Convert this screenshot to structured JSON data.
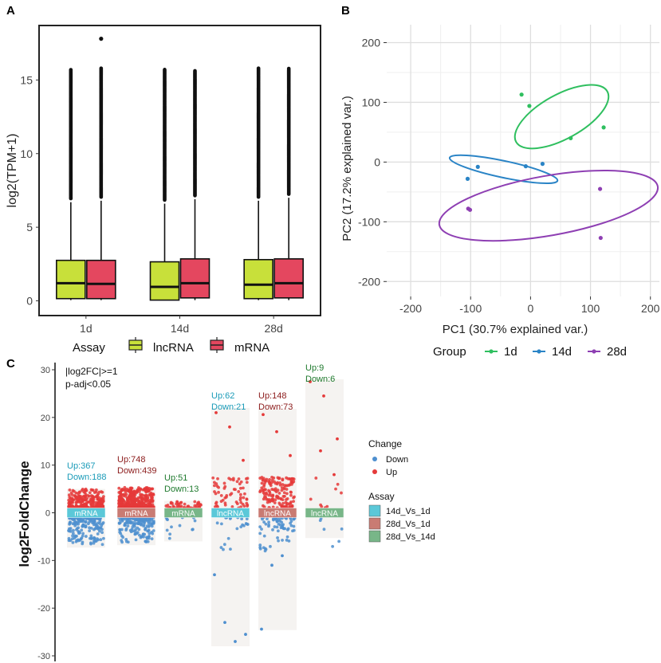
{
  "panels": {
    "a": {
      "label": "A"
    },
    "b": {
      "label": "B"
    },
    "c": {
      "label": "C"
    }
  },
  "chart_data": [
    {
      "id": "A",
      "type": "boxplot",
      "title": "",
      "ylabel": "log2(TPM+1)",
      "xlabel": "",
      "categories": [
        "1d",
        "14d",
        "28d"
      ],
      "ylim": [
        -1,
        18.7
      ],
      "yticks": [
        0,
        5,
        10,
        15
      ],
      "legend": {
        "title": "Assay",
        "entries": [
          "lncRNA",
          "mRNA"
        ],
        "colors": [
          "#c8e03a",
          "#e4475f"
        ]
      },
      "series": [
        {
          "name": "lncRNA",
          "color": "#c8e03a",
          "boxes": [
            {
              "category": "1d",
              "min": 0.05,
              "q1": 0.15,
              "median": 1.2,
              "q3": 2.75,
              "whisker_high": 6.7,
              "outlier_max": 15.7
            },
            {
              "category": "14d",
              "min": 0.05,
              "q1": 0.05,
              "median": 0.95,
              "q3": 2.65,
              "whisker_high": 6.6,
              "outlier_max": 15.7
            },
            {
              "category": "28d",
              "min": 0.05,
              "q1": 0.15,
              "median": 1.1,
              "q3": 2.8,
              "whisker_high": 6.8,
              "outlier_max": 15.8
            }
          ]
        },
        {
          "name": "mRNA",
          "color": "#e4475f",
          "boxes": [
            {
              "category": "1d",
              "min": 0.05,
              "q1": 0.15,
              "median": 1.15,
              "q3": 2.75,
              "whisker_high": 6.8,
              "outlier_max": 17.8
            },
            {
              "category": "14d",
              "min": 0.05,
              "q1": 0.2,
              "median": 1.2,
              "q3": 2.85,
              "whisker_high": 6.9,
              "outlier_max": 15.6
            },
            {
              "category": "28d",
              "min": 0.05,
              "q1": 0.2,
              "median": 1.2,
              "q3": 2.85,
              "whisker_high": 7.0,
              "outlier_max": 15.9
            }
          ]
        }
      ]
    },
    {
      "id": "B",
      "type": "scatter",
      "title": "",
      "xlabel": "PC1 (30.7% explained var.)",
      "ylabel": "PC2 (17.2% explained var.)",
      "xlim": [
        -240,
        215
      ],
      "ylim": [
        -225,
        230
      ],
      "xticks": [
        -200,
        -100,
        0,
        100,
        200
      ],
      "yticks": [
        -200,
        -100,
        0,
        100,
        200
      ],
      "grid": true,
      "legend": {
        "title": "Group",
        "entries": [
          "1d",
          "14d",
          "28d"
        ],
        "colors": [
          "#2fbf5f",
          "#2a84c6",
          "#8e3fb3"
        ]
      },
      "series": [
        {
          "name": "1d",
          "color": "#2fbf5f",
          "points": [
            [
              -15,
              113
            ],
            [
              -2,
              94
            ],
            [
              67,
              40
            ],
            [
              122,
              58
            ]
          ],
          "ellipse": {
            "cx": 52,
            "cy": 76,
            "rx": 87,
            "ry": 37,
            "angle_deg": -29
          }
        },
        {
          "name": "14d",
          "color": "#2a84c6",
          "points": [
            [
              -105,
              -28
            ],
            [
              -88,
              -8
            ],
            [
              -8,
              -7
            ],
            [
              20,
              -3
            ]
          ],
          "ellipse": {
            "cx": -45,
            "cy": -12,
            "rx": 92,
            "ry": 14,
            "angle_deg": 12
          }
        },
        {
          "name": "28d",
          "color": "#8e3fb3",
          "points": [
            [
              -104,
              -78
            ],
            [
              -101,
              -80
            ],
            [
              116,
              -45
            ],
            [
              117,
              -127
            ]
          ],
          "ellipse": {
            "cx": 30,
            "cy": -73,
            "rx": 185,
            "ry": 50,
            "angle_deg": -10
          }
        }
      ]
    },
    {
      "id": "C",
      "type": "scatter",
      "title": "",
      "ylabel": "log2FoldChange",
      "ylim": [
        -30.5,
        31
      ],
      "yticks": [
        -30,
        -20,
        -10,
        0,
        10,
        20,
        30
      ],
      "annotation": [
        "|log2FC|>=1",
        "p-adj<0.05"
      ],
      "legend_change": {
        "title": "Change",
        "entries": [
          "Down",
          "Up"
        ],
        "colors": [
          "#4e8fcf",
          "#e53a3a"
        ]
      },
      "legend_assay": {
        "title": "Assay",
        "entries": [
          "14d_Vs_1d",
          "28d_Vs_1d",
          "28d_Vs_14d"
        ],
        "colors": [
          "#5bc8d8",
          "#c97b73",
          "#78b688"
        ]
      },
      "groups": [
        {
          "assay": "mRNA",
          "comparison": "14d_Vs_1d",
          "up_label": "Up:367",
          "down_label": "Down:188",
          "up": 367,
          "down": 188,
          "ymin": -7.3,
          "ymax": 5.0,
          "label_color": "#1a9bb8"
        },
        {
          "assay": "mRNA",
          "comparison": "28d_Vs_1d",
          "up_label": "Up:748",
          "down_label": "Down:439",
          "up": 748,
          "down": 439,
          "ymin": -6.8,
          "ymax": 5.3,
          "label_color": "#8b1a1a"
        },
        {
          "assay": "mRNA",
          "comparison": "28d_Vs_14d",
          "up_label": "Up:51",
          "down_label": "Down:13",
          "up": 51,
          "down": 13,
          "ymin": -6.0,
          "ymax": 2.5,
          "label_color": "#1f7a2e"
        },
        {
          "assay": "lncRNA",
          "comparison": "14d_Vs_1d",
          "up_label": "Up:62",
          "down_label": "Down:21",
          "up": 62,
          "down": 21,
          "ymin": -28.0,
          "ymax": 22.0,
          "label_color": "#1a9bb8"
        },
        {
          "assay": "lncRNA",
          "comparison": "28d_Vs_1d",
          "up_label": "Up:148",
          "down_label": "Down:73",
          "up": 148,
          "down": 73,
          "ymin": -24.6,
          "ymax": 21.8,
          "label_color": "#8b1a1a"
        },
        {
          "assay": "lncRNA",
          "comparison": "28d_Vs_14d",
          "up_label": "Up:9",
          "down_label": "Down:6",
          "up": 9,
          "down": 6,
          "ymin": -5.3,
          "ymax": 28.0,
          "label_color": "#1f7a2e"
        }
      ]
    }
  ]
}
